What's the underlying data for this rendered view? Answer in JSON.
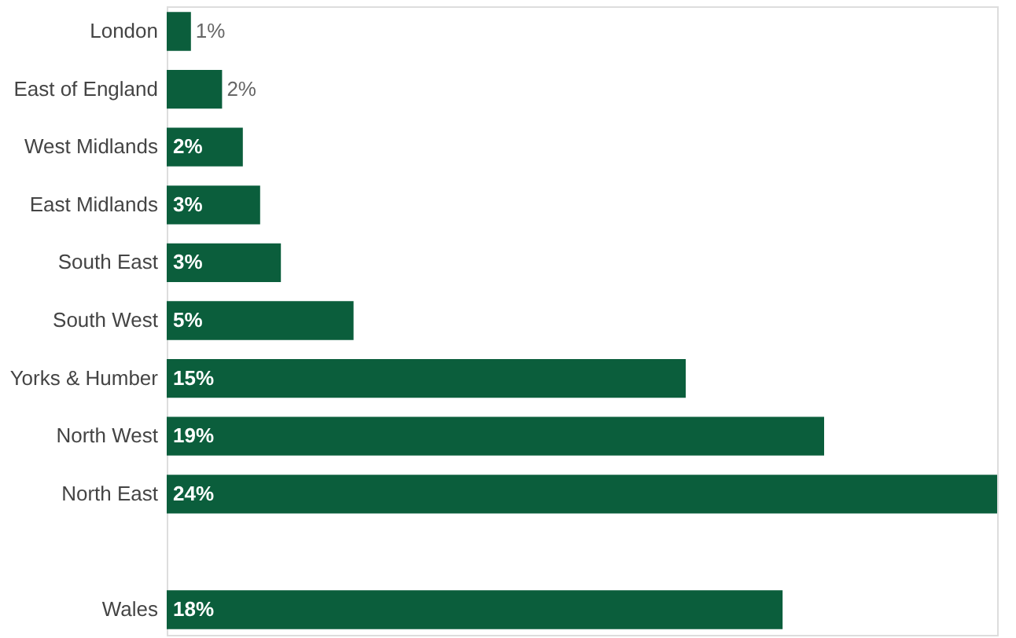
{
  "chart_data": {
    "type": "bar",
    "orientation": "horizontal",
    "categories": [
      "London",
      "East of England",
      "West Midlands",
      "East Midlands",
      "South East",
      "South West",
      "Yorks & Humber",
      "North West",
      "North East",
      null,
      "Wales"
    ],
    "values": [
      0.7,
      1.6,
      2.2,
      2.7,
      3.3,
      5.4,
      15.0,
      19.0,
      24.0,
      null,
      17.8
    ],
    "value_labels": [
      "1%",
      "2%",
      "2%",
      "3%",
      "3%",
      "5%",
      "15%",
      "19%",
      "24%",
      null,
      "18%"
    ],
    "color": "#0b5e3c",
    "grid": false
  }
}
